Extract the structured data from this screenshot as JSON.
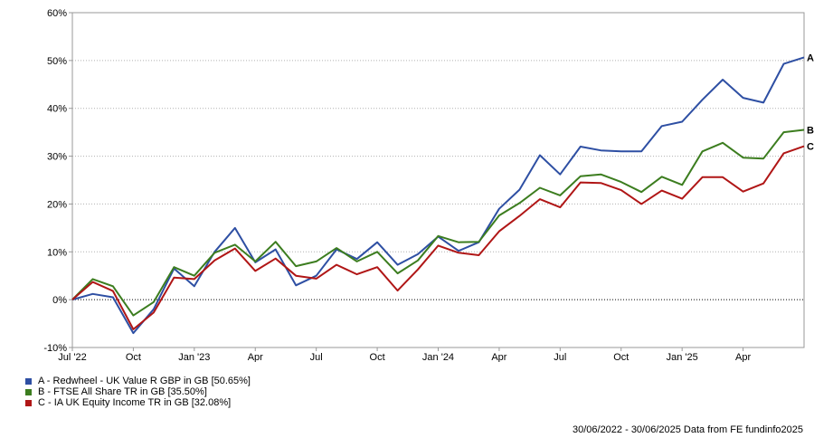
{
  "chart_data": {
    "type": "line",
    "x_tick_labels": [
      "Jul '22",
      "Oct",
      "Jan '23",
      "Apr",
      "Jul",
      "Oct",
      "Jan '24",
      "Apr",
      "Jul",
      "Oct",
      "Jan '25",
      "Apr"
    ],
    "y_tick_labels": [
      "-10%",
      "0%",
      "10%",
      "20%",
      "30%",
      "40%",
      "50%",
      "60%"
    ],
    "ylim": [
      -10,
      60
    ],
    "x_range_months": [
      0,
      36
    ],
    "grid": "horizontal dotted, zero line dashed",
    "series": [
      {
        "name": "A - Redwheel - UK Value R GBP in GB [50.65%]",
        "end_label": "A",
        "color": "#2e4fa3",
        "x": [
          0,
          1,
          2,
          3,
          4,
          5,
          6,
          7,
          8,
          9,
          10,
          11,
          12,
          13,
          14,
          15,
          16,
          17,
          18,
          19,
          20,
          21,
          22,
          23,
          24,
          25,
          26,
          27,
          28,
          29,
          30,
          31,
          32,
          33,
          34,
          35,
          36
        ],
        "y": [
          0,
          1.2,
          0.5,
          -7,
          -2,
          6.5,
          2.8,
          10,
          15,
          7.8,
          10.5,
          3,
          5,
          10.5,
          8.5,
          12,
          7.3,
          9.5,
          13.2,
          10.2,
          12,
          19,
          23,
          30.2,
          26.2,
          32,
          31.2,
          31,
          31,
          36.3,
          37.2,
          41.8,
          46,
          42.2,
          41.2,
          49.3,
          50.65
        ]
      },
      {
        "name": "B - FTSE All Share TR in GB [35.50%]",
        "end_label": "B",
        "color": "#3c7d1f",
        "x": [
          0,
          1,
          2,
          3,
          4,
          5,
          6,
          7,
          8,
          9,
          10,
          11,
          12,
          13,
          14,
          15,
          16,
          17,
          18,
          19,
          20,
          21,
          22,
          23,
          24,
          25,
          26,
          27,
          28,
          29,
          30,
          31,
          32,
          33,
          34,
          35,
          36
        ],
        "y": [
          0,
          4.3,
          2.8,
          -3.3,
          -0.5,
          6.8,
          5,
          9.8,
          11.5,
          8,
          12.1,
          7,
          8,
          10.8,
          8,
          10,
          5.5,
          8.2,
          13.3,
          12,
          12.1,
          17.6,
          20.2,
          23.4,
          21.8,
          25.8,
          26.2,
          24.6,
          22.5,
          25.7,
          24,
          31,
          32.8,
          29.7,
          29.5,
          35,
          35.5
        ]
      },
      {
        "name": "C - IA UK Equity Income TR in GB [32.08%]",
        "end_label": "C",
        "color": "#b01616",
        "x": [
          0,
          1,
          2,
          3,
          4,
          5,
          6,
          7,
          8,
          9,
          10,
          11,
          12,
          13,
          14,
          15,
          16,
          17,
          18,
          19,
          20,
          21,
          22,
          23,
          24,
          25,
          26,
          27,
          28,
          29,
          30,
          31,
          32,
          33,
          34,
          35,
          36
        ],
        "y": [
          0,
          3.7,
          1.8,
          -6.2,
          -2.7,
          4.6,
          4.3,
          8.2,
          10.7,
          6,
          8.6,
          5,
          4.4,
          7.3,
          5.3,
          6.8,
          1.9,
          6.3,
          11.3,
          9.8,
          9.3,
          14.3,
          17.5,
          21,
          19.3,
          24.5,
          24.4,
          22.9,
          20,
          22.8,
          21.1,
          25.6,
          25.6,
          22.6,
          24.3,
          30.6,
          32.08
        ]
      }
    ]
  },
  "footer": "30/06/2022 - 30/06/2025 Data from FE fundinfo2025"
}
